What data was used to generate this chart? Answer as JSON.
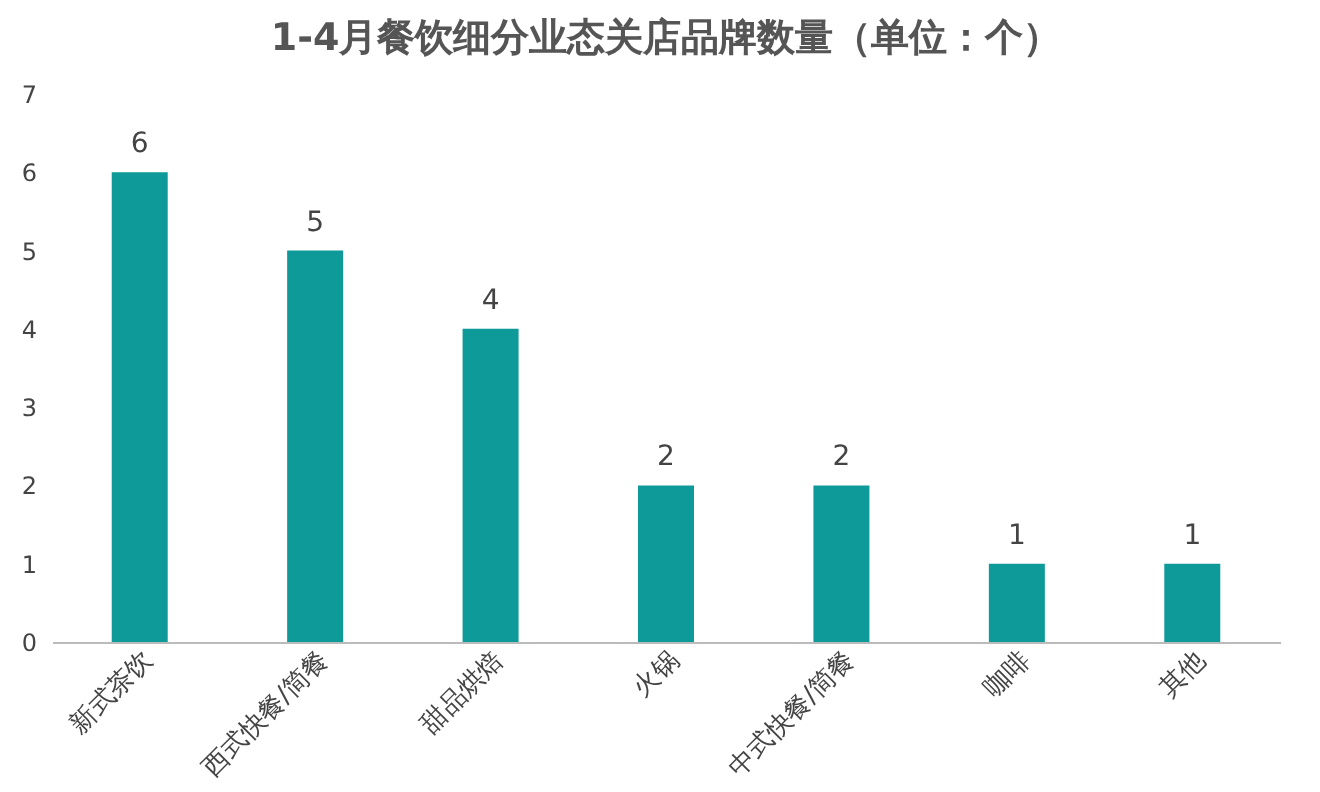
{
  "chart_data": {
    "type": "bar",
    "title": "1-4月餐饮细分业态关店品牌数量（单位：个）",
    "categories": [
      "新式茶饮",
      "西式快餐/简餐",
      "甜品烘焙",
      "火锅",
      "中式快餐/简餐",
      "咖啡",
      "其他"
    ],
    "values": [
      6,
      5,
      4,
      2,
      2,
      1,
      1
    ],
    "color": "#0f9a9a",
    "ylim": [
      0,
      7
    ],
    "yticks": [
      0,
      1,
      2,
      3,
      4,
      5,
      6,
      7
    ],
    "grid": false,
    "data_labels": true
  }
}
